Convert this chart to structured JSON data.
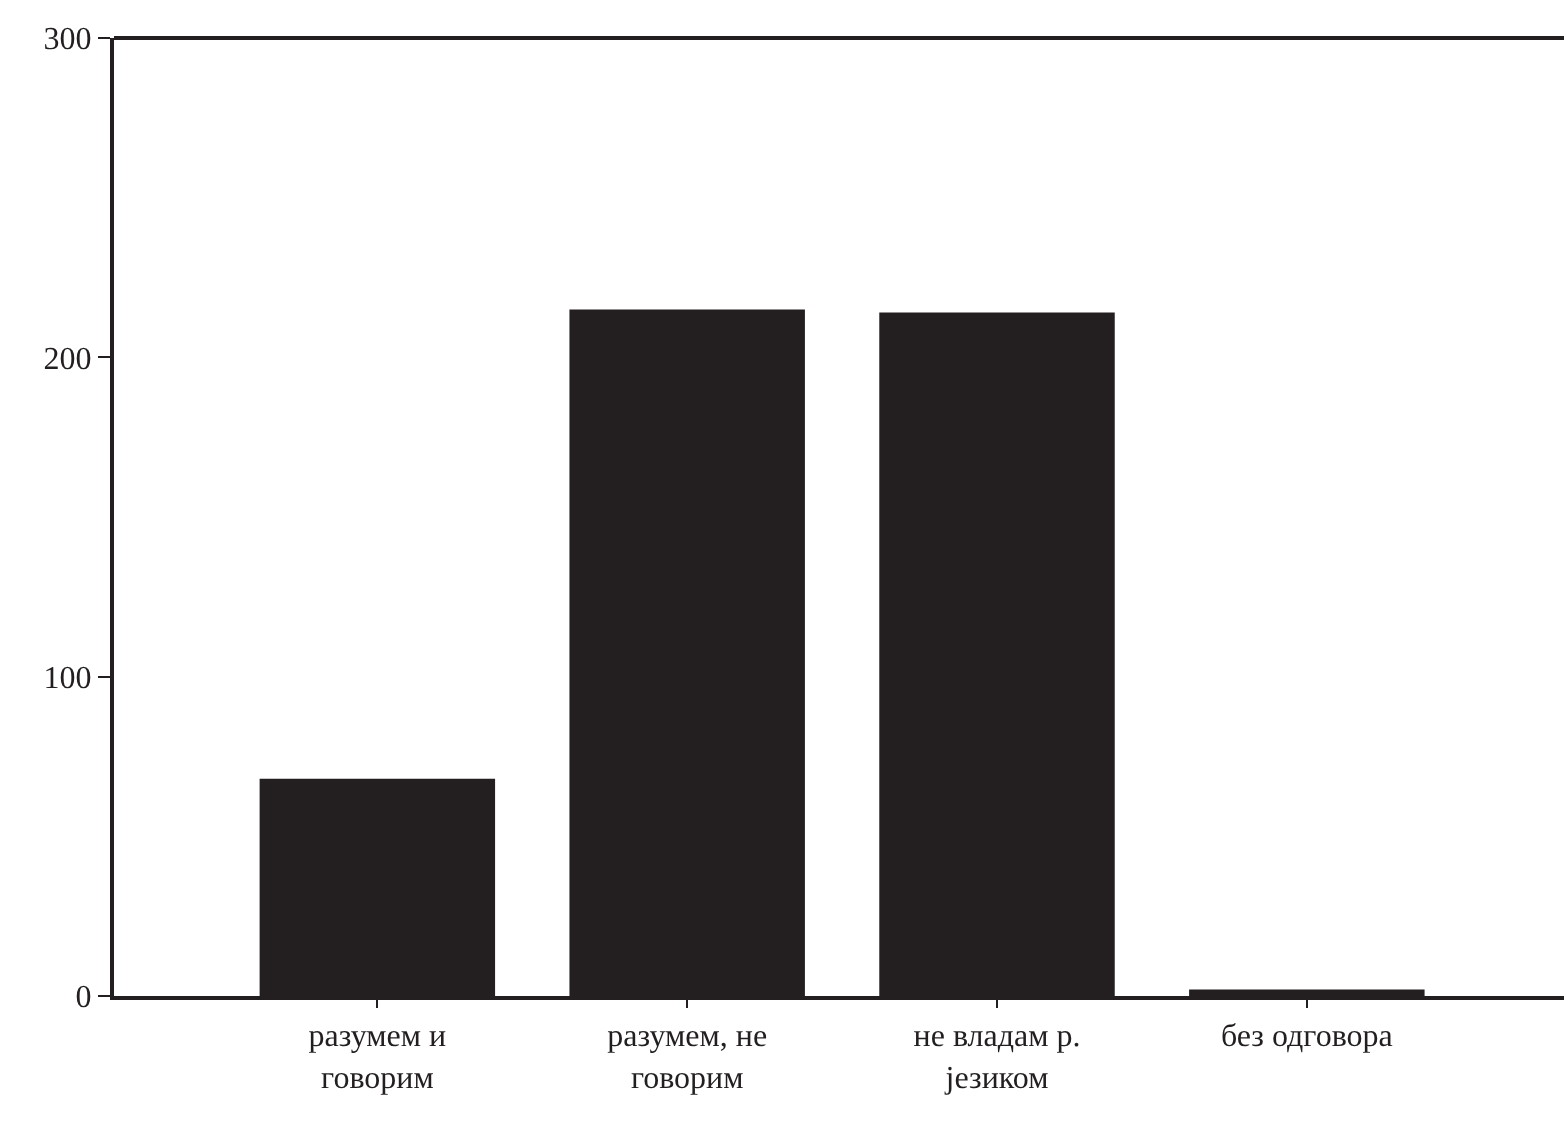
{
  "chart_data": {
    "type": "bar",
    "categories": [
      "разумем и говорим",
      "разумем, не говорим",
      "не владам р. језиком",
      "без одговора"
    ],
    "values": [
      68,
      215,
      214,
      2
    ],
    "color": "#231f20",
    "ylim": [
      0,
      300
    ],
    "yticks": [
      0,
      100,
      200,
      300
    ],
    "grid": false
  }
}
